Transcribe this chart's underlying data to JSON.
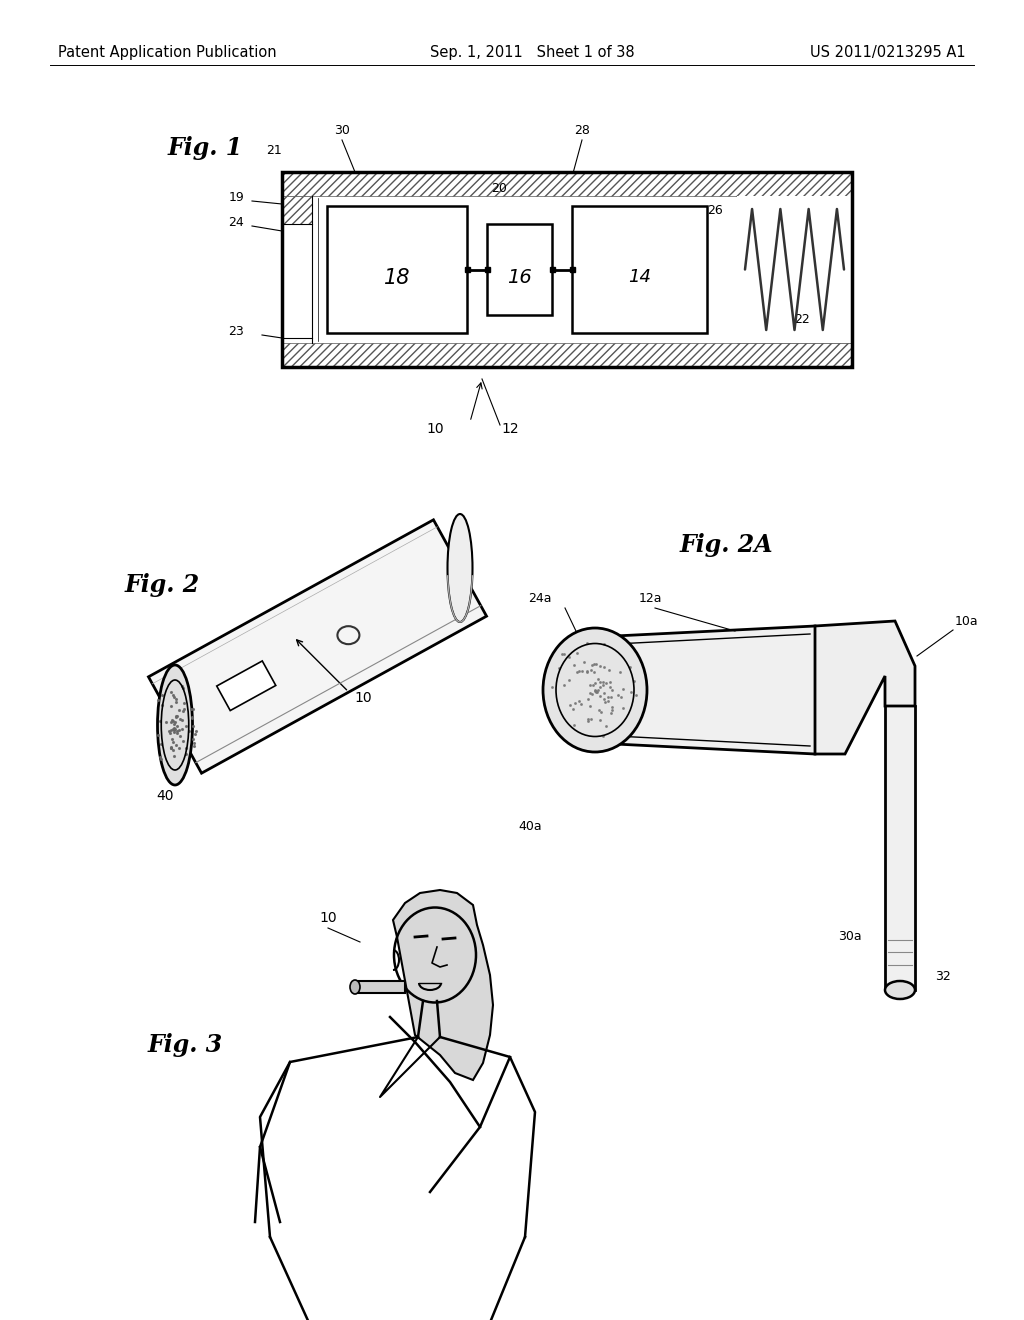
{
  "background_color": "#ffffff",
  "page_header": {
    "left": "Patent Application Publication",
    "center": "Sep. 1, 2011   Sheet 1 of 38",
    "right": "US 2011/0213295 A1"
  },
  "fig1_label": "Fig. 1",
  "fig2_label": "Fig. 2",
  "fig2a_label": "Fig. 2A",
  "fig3_label": "Fig. 3",
  "line_color": "#000000"
}
